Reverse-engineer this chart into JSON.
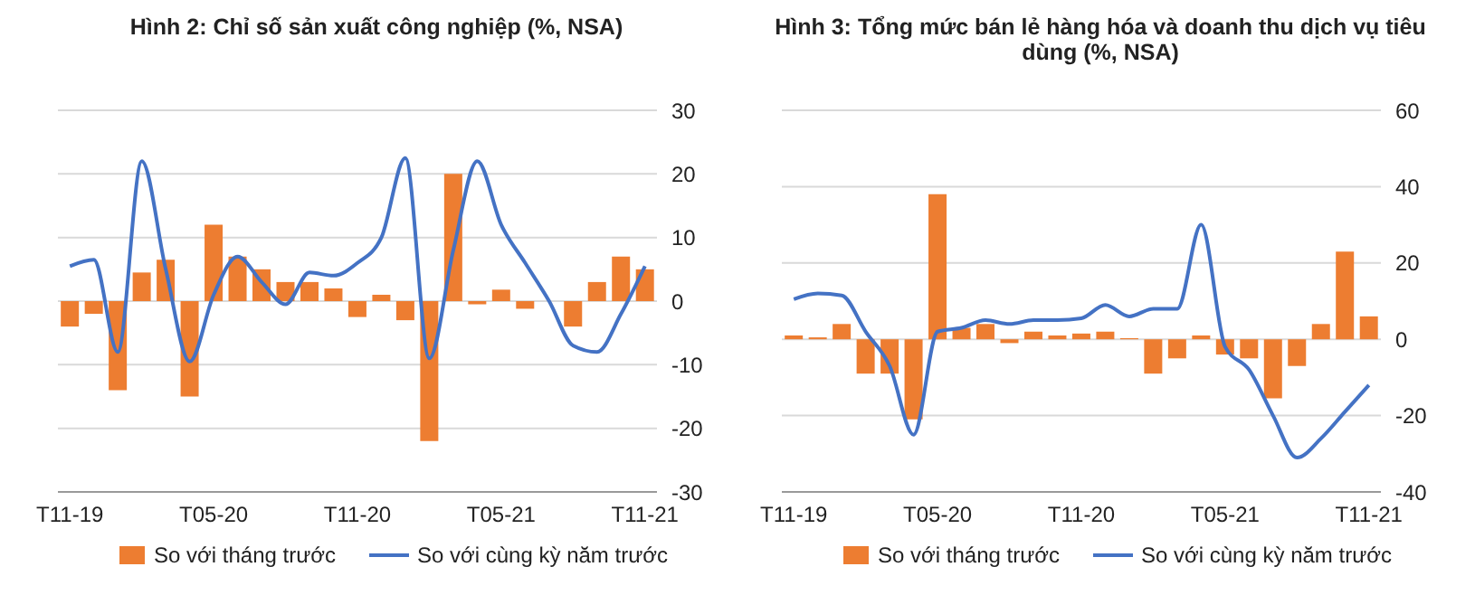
{
  "chart_data": [
    {
      "type": "bar",
      "title": "Hình 2: Chỉ số sản xuất công nghiệp (%, NSA)",
      "categories": [
        "T11-19",
        null,
        null,
        null,
        null,
        null,
        "T05-20",
        null,
        null,
        null,
        null,
        null,
        "T11-20",
        null,
        null,
        null,
        null,
        null,
        "T05-21",
        null,
        null,
        null,
        null,
        null,
        "T11-21"
      ],
      "series": [
        {
          "name": "So với tháng trước",
          "color": "#ed7d31",
          "values": [
            -4,
            -2,
            -14,
            4.5,
            6.5,
            -15,
            12,
            7,
            5,
            3,
            3,
            2,
            -2.5,
            1,
            -3,
            -22,
            20,
            -0.5,
            1.8,
            -1.2,
            0,
            -4,
            3,
            7,
            5
          ]
        },
        {
          "name": "So với cùng kỳ năm trước",
          "type": "line",
          "color": "#4472c4",
          "values": [
            5.5,
            6.5,
            -8,
            22,
            5,
            -9.5,
            1,
            7,
            3,
            -0.5,
            4.5,
            4,
            6,
            10,
            22.5,
            -9,
            8,
            22,
            12,
            6,
            0,
            -7,
            -8,
            -2,
            5.5
          ]
        }
      ],
      "ylim": [
        -30,
        30
      ],
      "yticks": [
        -30,
        -20,
        -10,
        0,
        10,
        20,
        30
      ],
      "grid": "y",
      "legend": "bottom",
      "marker": "none",
      "line_style": "solid"
    },
    {
      "type": "bar",
      "title": "Hình 3: Tổng mức bán lẻ hàng hóa và doanh thu dịch vụ tiêu dùng (%, NSA)",
      "categories": [
        "T11-19",
        null,
        null,
        null,
        null,
        null,
        "T05-20",
        null,
        null,
        null,
        null,
        null,
        "T11-20",
        null,
        null,
        null,
        null,
        null,
        "T05-21",
        null,
        null,
        null,
        null,
        null,
        "T11-21"
      ],
      "series": [
        {
          "name": "So với tháng trước",
          "color": "#ed7d31",
          "values": [
            1,
            0.5,
            4,
            -9,
            -9,
            -21,
            38,
            3,
            4,
            -1,
            2,
            1,
            1.5,
            2,
            0.3,
            -9,
            -5,
            1,
            -4,
            -5,
            -15.5,
            -7,
            4,
            23,
            6
          ]
        },
        {
          "name": "So với cùng kỳ năm trước",
          "type": "line",
          "color": "#4472c4",
          "values": [
            10.5,
            12,
            11.5,
            2,
            -7,
            -25,
            2,
            3,
            5,
            4,
            5,
            5,
            5.5,
            9,
            6,
            8,
            8,
            30,
            -2,
            -8,
            -20,
            -31,
            -26,
            -19,
            -12
          ]
        }
      ],
      "ylim": [
        -40,
        60
      ],
      "yticks": [
        -40,
        -20,
        0,
        20,
        40,
        60
      ],
      "grid": "y",
      "legend": "bottom",
      "marker": "none",
      "line_style": "solid"
    }
  ]
}
